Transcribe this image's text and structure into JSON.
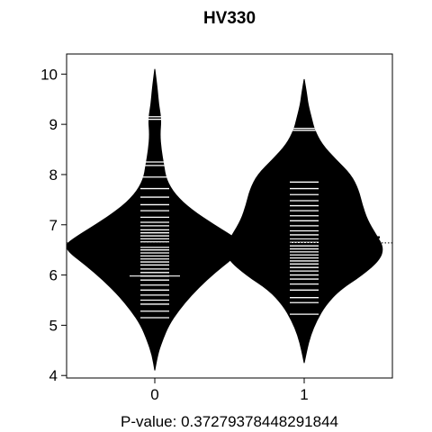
{
  "chart_data": {
    "type": "beanplot",
    "title": "HV330",
    "xlabel": "",
    "ylabel": "",
    "ylim": [
      3.95,
      10.4
    ],
    "yticks": [
      4,
      5,
      6,
      7,
      8,
      9,
      10
    ],
    "categories": [
      "0",
      "1"
    ],
    "overall_mean": 6.64,
    "pvalue_label": "P-value: 0.37279378448291844",
    "colors": {
      "bean": "#000000",
      "line": "#ffffff",
      "axis": "#000000"
    },
    "groups": [
      {
        "category": "0",
        "mean": 6.6,
        "range": [
          4.1,
          10.1
        ],
        "density": [
          [
            4.1,
            0.0
          ],
          [
            4.4,
            0.02
          ],
          [
            4.7,
            0.06
          ],
          [
            5.0,
            0.11
          ],
          [
            5.3,
            0.19
          ],
          [
            5.6,
            0.29
          ],
          [
            5.9,
            0.41
          ],
          [
            6.2,
            0.55
          ],
          [
            6.45,
            0.68
          ],
          [
            6.6,
            0.71
          ],
          [
            6.75,
            0.63
          ],
          [
            7.0,
            0.47
          ],
          [
            7.3,
            0.29
          ],
          [
            7.6,
            0.16
          ],
          [
            7.9,
            0.09
          ],
          [
            8.2,
            0.07
          ],
          [
            8.5,
            0.05
          ],
          [
            8.8,
            0.04
          ],
          [
            9.1,
            0.05
          ],
          [
            9.4,
            0.03
          ],
          [
            9.7,
            0.02
          ],
          [
            10.1,
            0.0
          ]
        ],
        "observations": [
          9.15,
          9.1,
          8.25,
          8.18,
          7.95,
          7.72,
          7.55,
          7.4,
          7.28,
          7.15,
          7.05,
          6.98,
          6.9,
          6.84,
          6.78,
          6.72,
          6.66,
          6.6,
          6.55,
          6.5,
          6.44,
          6.38,
          6.32,
          6.26,
          6.2,
          6.12,
          6.05,
          5.98,
          5.9,
          5.8,
          5.7,
          5.6,
          5.5,
          5.42,
          5.28,
          5.15
        ],
        "wide_lines": [
          5.98
        ]
      },
      {
        "category": "1",
        "mean": 6.75,
        "range": [
          4.25,
          9.9
        ],
        "density": [
          [
            4.25,
            0.0
          ],
          [
            4.5,
            0.02
          ],
          [
            4.8,
            0.05
          ],
          [
            5.1,
            0.1
          ],
          [
            5.4,
            0.17
          ],
          [
            5.7,
            0.28
          ],
          [
            6.0,
            0.46
          ],
          [
            6.3,
            0.6
          ],
          [
            6.55,
            0.63
          ],
          [
            6.8,
            0.57
          ],
          [
            7.1,
            0.5
          ],
          [
            7.4,
            0.46
          ],
          [
            7.7,
            0.43
          ],
          [
            8.0,
            0.37
          ],
          [
            8.3,
            0.25
          ],
          [
            8.6,
            0.14
          ],
          [
            8.9,
            0.08
          ],
          [
            9.1,
            0.06
          ],
          [
            9.4,
            0.03
          ],
          [
            9.6,
            0.02
          ],
          [
            9.9,
            0.0
          ]
        ],
        "observations": [
          8.92,
          8.88,
          7.85,
          7.72,
          7.6,
          7.48,
          7.38,
          7.28,
          7.18,
          7.08,
          6.98,
          6.88,
          6.8,
          6.72,
          6.65,
          6.58,
          6.52,
          6.46,
          6.4,
          6.34,
          6.28,
          6.22,
          6.15,
          6.08,
          6.0,
          5.92,
          5.82,
          5.7,
          5.55,
          5.45,
          5.22
        ],
        "wide_lines": []
      }
    ]
  }
}
